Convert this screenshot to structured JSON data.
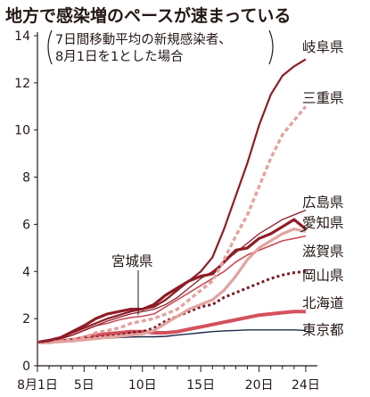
{
  "chart_data": {
    "type": "line",
    "title": "地方で感染増のペースが速まっている",
    "subtitle_lines": [
      "7日間移動平均の新規感染者、",
      "8月1日を1とした場合"
    ],
    "x": [
      1,
      2,
      3,
      4,
      5,
      6,
      7,
      8,
      9,
      10,
      11,
      12,
      13,
      14,
      15,
      16,
      17,
      18,
      19,
      20,
      21,
      22,
      23,
      24
    ],
    "xticks": [
      1,
      5,
      10,
      15,
      20,
      24
    ],
    "xtick_labels": [
      "8月1日",
      "5日",
      "10日",
      "15日",
      "20日",
      "24日"
    ],
    "ylim": [
      0,
      14
    ],
    "yticks": [
      0,
      2,
      4,
      6,
      8,
      10,
      12,
      14
    ],
    "xlim": [
      1,
      25
    ],
    "grid": false,
    "series": [
      {
        "name": "岐阜県",
        "color": "#8f1c26",
        "width": 2.2,
        "dash": "",
        "values": [
          1,
          1.05,
          1.2,
          1.4,
          1.6,
          1.8,
          2.0,
          2.15,
          2.3,
          2.4,
          2.5,
          2.8,
          3.2,
          3.6,
          4.0,
          4.6,
          5.8,
          7.2,
          8.6,
          10.2,
          11.5,
          12.3,
          12.7,
          13.0
        ]
      },
      {
        "name": "三重県",
        "color": "#e3a39f",
        "width": 3.4,
        "dash": "5 3",
        "values": [
          1,
          1.0,
          1.05,
          1.1,
          1.2,
          1.4,
          1.5,
          1.6,
          1.8,
          1.9,
          2.0,
          2.2,
          2.4,
          2.8,
          3.2,
          3.6,
          4.5,
          5.5,
          6.4,
          7.6,
          8.8,
          9.8,
          10.4,
          11.0
        ]
      },
      {
        "name": "広島県",
        "color": "#8f1c26",
        "width": 1.3,
        "dash": "",
        "values": [
          1,
          1.05,
          1.15,
          1.3,
          1.5,
          1.7,
          1.9,
          2.05,
          2.2,
          2.3,
          2.4,
          2.6,
          2.9,
          3.3,
          3.7,
          4.0,
          4.4,
          4.8,
          5.2,
          5.6,
          5.9,
          6.2,
          6.4,
          6.6
        ]
      },
      {
        "name": "愛知県",
        "color": "#8f1c26",
        "width": 3.2,
        "dash": "",
        "values": [
          1,
          1.08,
          1.2,
          1.45,
          1.7,
          2.0,
          2.2,
          2.3,
          2.4,
          2.4,
          2.6,
          3.0,
          3.3,
          3.6,
          3.8,
          3.9,
          4.4,
          4.9,
          5.0,
          5.4,
          5.6,
          5.9,
          6.2,
          5.8
        ]
      },
      {
        "name": "滋賀県",
        "color": "#e3a39f",
        "width": 3.2,
        "dash": "",
        "values": [
          1,
          1.0,
          1.02,
          1.05,
          1.1,
          1.15,
          1.2,
          1.25,
          1.3,
          1.35,
          1.5,
          1.8,
          2.1,
          2.4,
          2.6,
          2.8,
          3.2,
          3.8,
          4.5,
          5.0,
          5.3,
          5.6,
          5.8,
          5.7
        ]
      },
      {
        "name": "宮城県",
        "color": "#c84a57",
        "width": 1.6,
        "dash": "",
        "values": [
          1,
          1.05,
          1.15,
          1.3,
          1.5,
          1.7,
          1.8,
          1.95,
          2.05,
          2.1,
          2.2,
          2.5,
          2.8,
          3.1,
          3.4,
          3.7,
          4.0,
          4.4,
          4.7,
          4.9,
          5.1,
          5.3,
          5.4,
          5.5
        ]
      },
      {
        "name": "岡山県",
        "color": "#7a1820",
        "width": 3.0,
        "dash": "3 3",
        "values": [
          1,
          1.0,
          1.05,
          1.1,
          1.15,
          1.2,
          1.25,
          1.3,
          1.4,
          1.45,
          1.6,
          1.9,
          2.1,
          2.3,
          2.5,
          2.6,
          2.9,
          3.1,
          3.3,
          3.5,
          3.7,
          3.85,
          3.95,
          4.0
        ]
      },
      {
        "name": "北海道",
        "color": "#d4505d",
        "width": 4.0,
        "dash": "",
        "values": [
          1,
          1.0,
          1.05,
          1.1,
          1.2,
          1.3,
          1.35,
          1.4,
          1.45,
          1.45,
          1.4,
          1.4,
          1.45,
          1.55,
          1.65,
          1.75,
          1.85,
          1.95,
          2.05,
          2.15,
          2.2,
          2.25,
          2.3,
          2.3
        ]
      },
      {
        "name": "東京都",
        "color": "#1e2a4a",
        "width": 1.4,
        "dash": "",
        "values": [
          1,
          1.02,
          1.05,
          1.1,
          1.12,
          1.15,
          1.17,
          1.2,
          1.22,
          1.23,
          1.23,
          1.25,
          1.3,
          1.35,
          1.4,
          1.45,
          1.48,
          1.5,
          1.52,
          1.52,
          1.52,
          1.52,
          1.52,
          1.5
        ]
      }
    ]
  }
}
